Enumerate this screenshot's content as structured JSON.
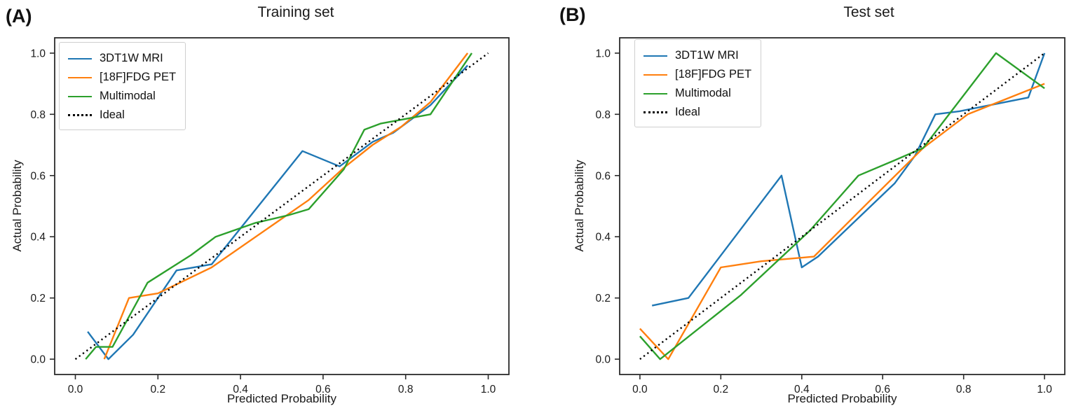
{
  "figure": {
    "background": "#ffffff",
    "axis_color": "#2b2b2b",
    "ideal_color": "#000000"
  },
  "chart_data": [
    {
      "type": "line",
      "panel_tag": "(A)",
      "title": "Training set",
      "xlabel": "Predicted Probability",
      "ylabel": "Actual Probability",
      "xlim": [
        -0.05,
        1.05
      ],
      "ylim": [
        -0.05,
        1.05
      ],
      "xticks": [
        "0.0",
        "0.2",
        "0.4",
        "0.6",
        "0.8",
        "1.0"
      ],
      "yticks": [
        "0.0",
        "0.2",
        "0.4",
        "0.6",
        "0.8",
        "1.0"
      ],
      "grid": false,
      "legend_position": "upper left",
      "series": [
        {
          "name": "3DT1W MRI",
          "color": "#1f77b4",
          "style": "solid",
          "points": [
            [
              0.03,
              0.09
            ],
            [
              0.08,
              0.0
            ],
            [
              0.14,
              0.08
            ],
            [
              0.245,
              0.29
            ],
            [
              0.33,
              0.31
            ],
            [
              0.55,
              0.68
            ],
            [
              0.64,
              0.63
            ],
            [
              0.72,
              0.71
            ],
            [
              0.77,
              0.74
            ],
            [
              0.86,
              0.83
            ],
            [
              0.95,
              0.96
            ]
          ]
        },
        {
          "name": "[18F]FDG PET",
          "color": "#ff7f0e",
          "style": "solid",
          "points": [
            [
              0.07,
              0.0
            ],
            [
              0.13,
              0.2
            ],
            [
              0.2,
              0.215
            ],
            [
              0.33,
              0.3
            ],
            [
              0.565,
              0.52
            ],
            [
              0.65,
              0.625
            ],
            [
              0.72,
              0.7
            ],
            [
              0.79,
              0.76
            ],
            [
              0.86,
              0.84
            ],
            [
              0.95,
              1.0
            ]
          ]
        },
        {
          "name": "Multimodal",
          "color": "#2ca02c",
          "style": "solid",
          "points": [
            [
              0.025,
              0.0
            ],
            [
              0.05,
              0.04
            ],
            [
              0.09,
              0.04
            ],
            [
              0.175,
              0.25
            ],
            [
              0.28,
              0.34
            ],
            [
              0.34,
              0.4
            ],
            [
              0.435,
              0.445
            ],
            [
              0.515,
              0.47
            ],
            [
              0.565,
              0.49
            ],
            [
              0.65,
              0.62
            ],
            [
              0.7,
              0.75
            ],
            [
              0.74,
              0.77
            ],
            [
              0.82,
              0.79
            ],
            [
              0.86,
              0.8
            ],
            [
              0.96,
              1.0
            ]
          ]
        },
        {
          "name": "Ideal",
          "color": "#000000",
          "style": "dotted",
          "points": [
            [
              0.0,
              0.0
            ],
            [
              1.0,
              1.0
            ]
          ]
        }
      ]
    },
    {
      "type": "line",
      "panel_tag": "(B)",
      "title": "Test set",
      "xlabel": "Predicted Probability",
      "ylabel": "Actual Probability",
      "xlim": [
        -0.05,
        1.05
      ],
      "ylim": [
        -0.05,
        1.05
      ],
      "xticks": [
        "0.0",
        "0.2",
        "0.4",
        "0.6",
        "0.8",
        "1.0"
      ],
      "yticks": [
        "0.0",
        "0.2",
        "0.4",
        "0.6",
        "0.8",
        "1.0"
      ],
      "grid": false,
      "legend_position": "upper left",
      "series": [
        {
          "name": "3DT1W MRI",
          "color": "#1f77b4",
          "style": "solid",
          "points": [
            [
              0.03,
              0.175
            ],
            [
              0.12,
              0.2
            ],
            [
              0.35,
              0.6
            ],
            [
              0.4,
              0.3
            ],
            [
              0.44,
              0.335
            ],
            [
              0.63,
              0.575
            ],
            [
              0.68,
              0.665
            ],
            [
              0.73,
              0.8
            ],
            [
              0.79,
              0.81
            ],
            [
              0.96,
              0.855
            ],
            [
              1.0,
              1.0
            ]
          ]
        },
        {
          "name": "[18F]FDG PET",
          "color": "#ff7f0e",
          "style": "solid",
          "points": [
            [
              0.0,
              0.1
            ],
            [
              0.07,
              0.0
            ],
            [
              0.2,
              0.3
            ],
            [
              0.3,
              0.32
            ],
            [
              0.43,
              0.335
            ],
            [
              0.57,
              0.52
            ],
            [
              0.7,
              0.69
            ],
            [
              0.81,
              0.8
            ],
            [
              1.0,
              0.9
            ]
          ]
        },
        {
          "name": "Multimodal",
          "color": "#2ca02c",
          "style": "solid",
          "points": [
            [
              0.0,
              0.075
            ],
            [
              0.05,
              0.0
            ],
            [
              0.25,
              0.21
            ],
            [
              0.42,
              0.42
            ],
            [
              0.54,
              0.6
            ],
            [
              0.63,
              0.65
            ],
            [
              0.7,
              0.69
            ],
            [
              0.88,
              1.0
            ],
            [
              1.0,
              0.885
            ]
          ]
        },
        {
          "name": "Ideal",
          "color": "#000000",
          "style": "dotted",
          "points": [
            [
              0.0,
              0.0
            ],
            [
              1.0,
              1.0
            ]
          ]
        }
      ]
    }
  ]
}
